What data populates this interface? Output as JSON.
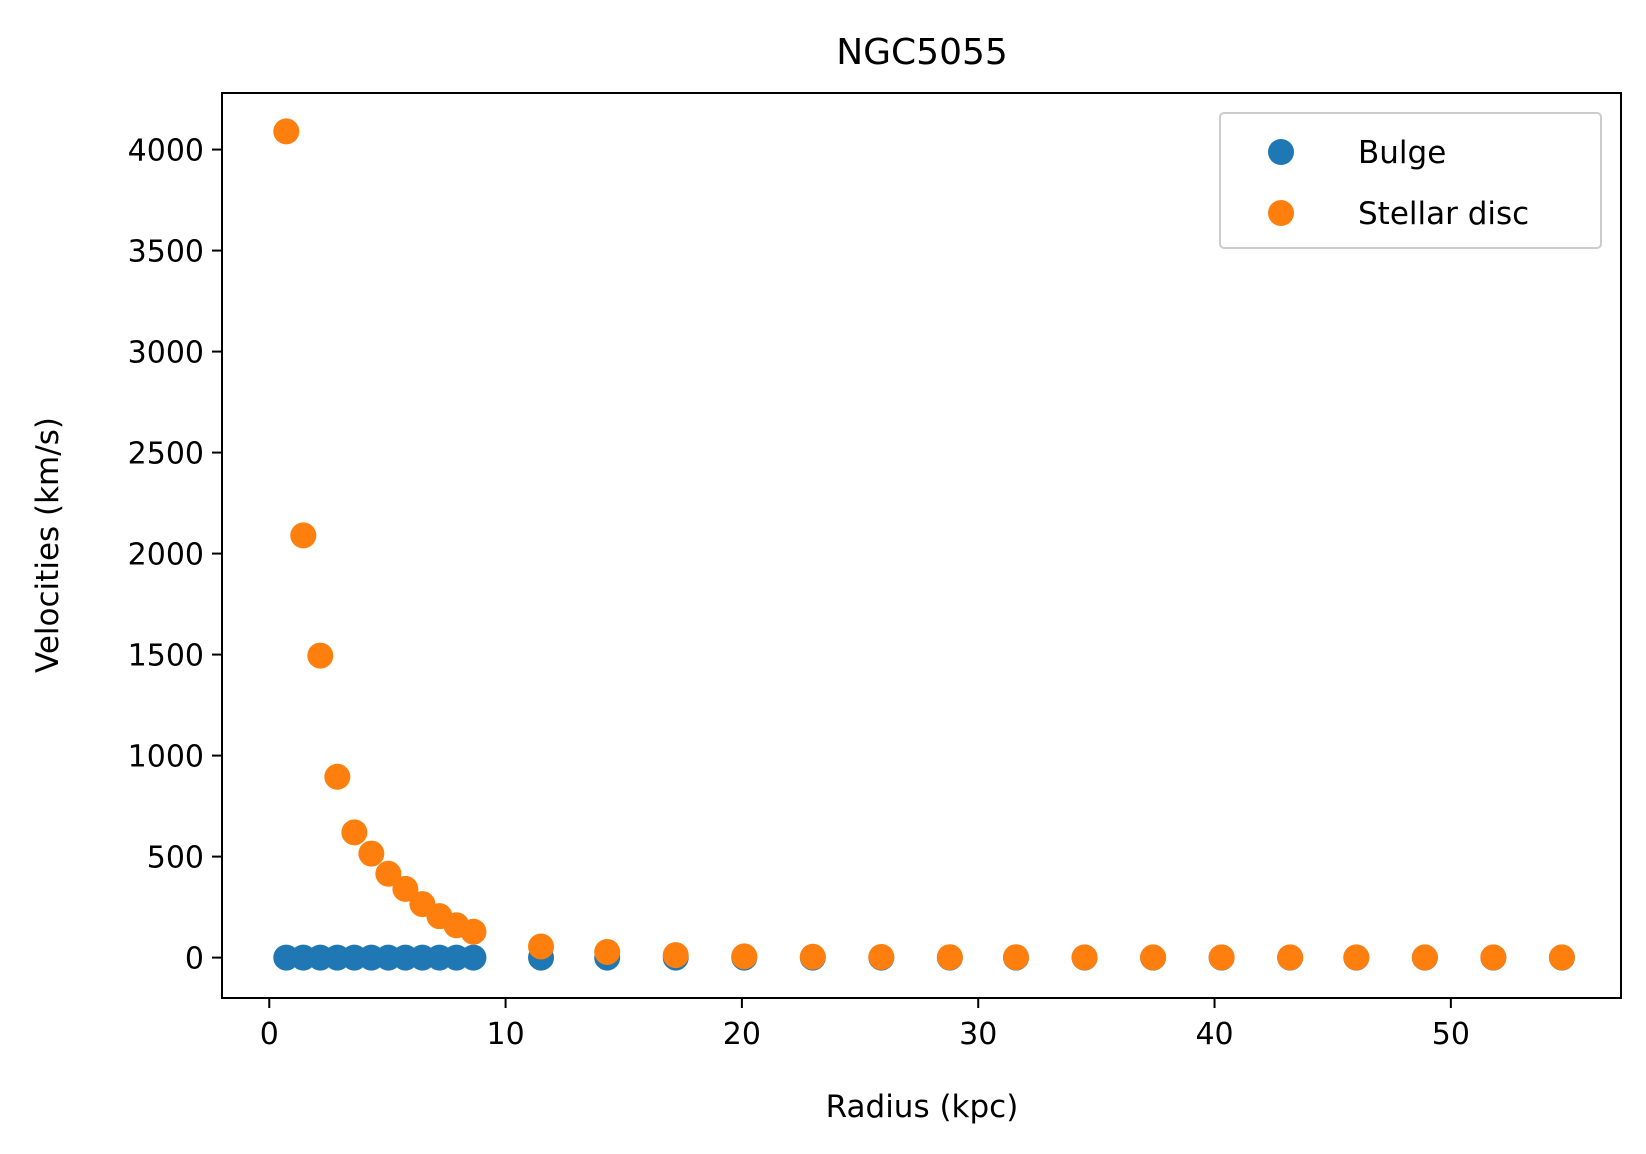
{
  "chart_data": {
    "type": "scatter",
    "title": "NGC5055",
    "xlabel": "Radius (kpc)",
    "ylabel": "Velocities (km/s)",
    "xlim": [
      -2,
      57.2
    ],
    "ylim": [
      -200,
      4280
    ],
    "xticks": [
      0,
      10,
      20,
      30,
      40,
      50
    ],
    "yticks": [
      0,
      500,
      1000,
      1500,
      2000,
      2500,
      3000,
      3500,
      4000
    ],
    "grid": false,
    "legend_position": "top-right",
    "series": [
      {
        "name": "Bulge",
        "color": "#1f77b4",
        "x": [
          0.72,
          1.44,
          2.16,
          2.88,
          3.6,
          4.32,
          5.04,
          5.76,
          6.48,
          7.2,
          7.92,
          8.64,
          11.5,
          14.3,
          17.2,
          20.1,
          23.0,
          25.9,
          28.8,
          31.6,
          34.5,
          37.4,
          40.3,
          43.2,
          46.0,
          48.9,
          51.8,
          54.7
        ],
        "y": [
          0,
          0,
          0,
          0,
          0,
          0,
          0,
          0,
          0,
          0,
          0,
          0,
          0,
          0,
          0,
          0,
          0,
          0,
          0,
          0,
          0,
          0,
          0,
          0,
          0,
          0,
          0,
          0
        ]
      },
      {
        "name": "Stellar disc",
        "color": "#ff7f0e",
        "x": [
          0.72,
          1.44,
          2.16,
          2.88,
          3.6,
          4.32,
          5.04,
          5.76,
          6.48,
          7.2,
          7.92,
          8.64,
          11.5,
          14.3,
          17.2,
          20.1,
          23.0,
          25.9,
          28.8,
          31.6,
          34.5,
          37.4,
          40.3,
          43.2,
          46.0,
          48.9,
          51.8,
          54.7
        ],
        "y": [
          4090,
          2090,
          1495,
          895,
          620,
          515,
          415,
          340,
          265,
          205,
          160,
          128,
          55,
          28,
          12,
          6,
          4,
          3,
          2,
          2,
          1,
          1,
          1,
          1,
          1,
          1,
          1,
          1
        ]
      }
    ]
  }
}
